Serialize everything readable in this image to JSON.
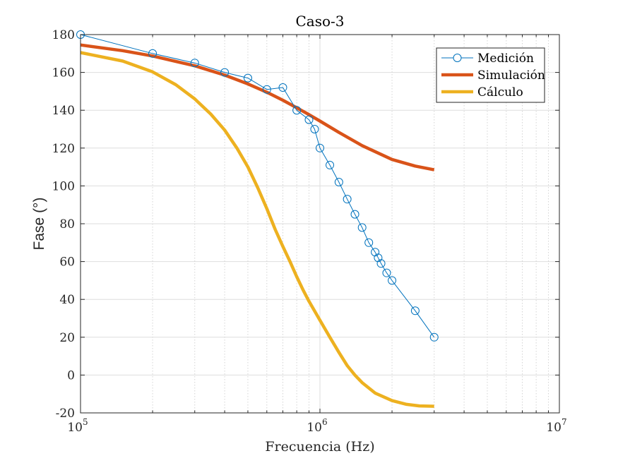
{
  "chart_data": {
    "type": "line",
    "title": "Caso-3",
    "xlabel": "Frecuencia (Hz)",
    "ylabel": "Fase (°)",
    "xscale": "log",
    "xlim": [
      100000,
      10000000
    ],
    "ylim": [
      -20,
      180
    ],
    "y_ticks": [
      -20,
      0,
      20,
      40,
      60,
      80,
      100,
      120,
      140,
      160,
      180
    ],
    "y_tick_labels": [
      "-20",
      "0",
      "20",
      "40",
      "60",
      "80",
      "100",
      "120",
      "140",
      "160",
      "180"
    ],
    "x_tick_labels": [
      {
        "value": 100000,
        "base": "10",
        "exp": "5"
      },
      {
        "value": 1000000,
        "base": "10",
        "exp": "6"
      },
      {
        "value": 10000000,
        "base": "10",
        "exp": "7"
      }
    ],
    "grid": true,
    "legend_position": "top-right",
    "series": [
      {
        "name": "Medición",
        "color": "#0072BD",
        "style": "line-markers",
        "marker": "circle",
        "x": [
          100000,
          200000,
          300000,
          400000,
          500000,
          600000,
          700000,
          800000,
          900000,
          950000,
          1000000,
          1100000,
          1200000,
          1300000,
          1400000,
          1500000,
          1600000,
          1700000,
          1750000,
          1800000,
          1900000,
          2000000,
          2500000,
          3000000
        ],
        "y": [
          180,
          170,
          165,
          160,
          157,
          151,
          152,
          140,
          135,
          130,
          120,
          111,
          102,
          93,
          85,
          78,
          70,
          65,
          62,
          59,
          54,
          50,
          34,
          20
        ]
      },
      {
        "name": "Simulación",
        "color": "#D95319",
        "style": "line-thick",
        "x": [
          100000,
          150000,
          200000,
          300000,
          400000,
          500000,
          600000,
          700000,
          800000,
          900000,
          1000000,
          1200000,
          1500000,
          2000000,
          2500000,
          3000000
        ],
        "y": [
          174.5,
          171.5,
          168.7,
          163.5,
          158.6,
          153.9,
          149.5,
          145.3,
          141.3,
          137.7,
          134.3,
          128.3,
          121.3,
          114.0,
          110.5,
          108.5
        ]
      },
      {
        "name": "Cálculo",
        "color": "#EDB120",
        "style": "line-thick",
        "x": [
          100000,
          150000,
          200000,
          250000,
          300000,
          350000,
          400000,
          450000,
          500000,
          550000,
          600000,
          650000,
          700000,
          750000,
          800000,
          850000,
          900000,
          1000000,
          1100000,
          1200000,
          1300000,
          1400000,
          1500000,
          1700000,
          2000000,
          2300000,
          2600000,
          3000000
        ],
        "y": [
          170.5,
          166,
          160.3,
          153.5,
          146,
          138,
          129.5,
          120,
          110,
          99,
          88,
          77,
          68,
          60,
          52,
          45,
          39,
          29,
          20,
          12,
          5,
          0,
          -4,
          -9.5,
          -13.5,
          -15.5,
          -16.3,
          -16.5
        ]
      }
    ]
  }
}
